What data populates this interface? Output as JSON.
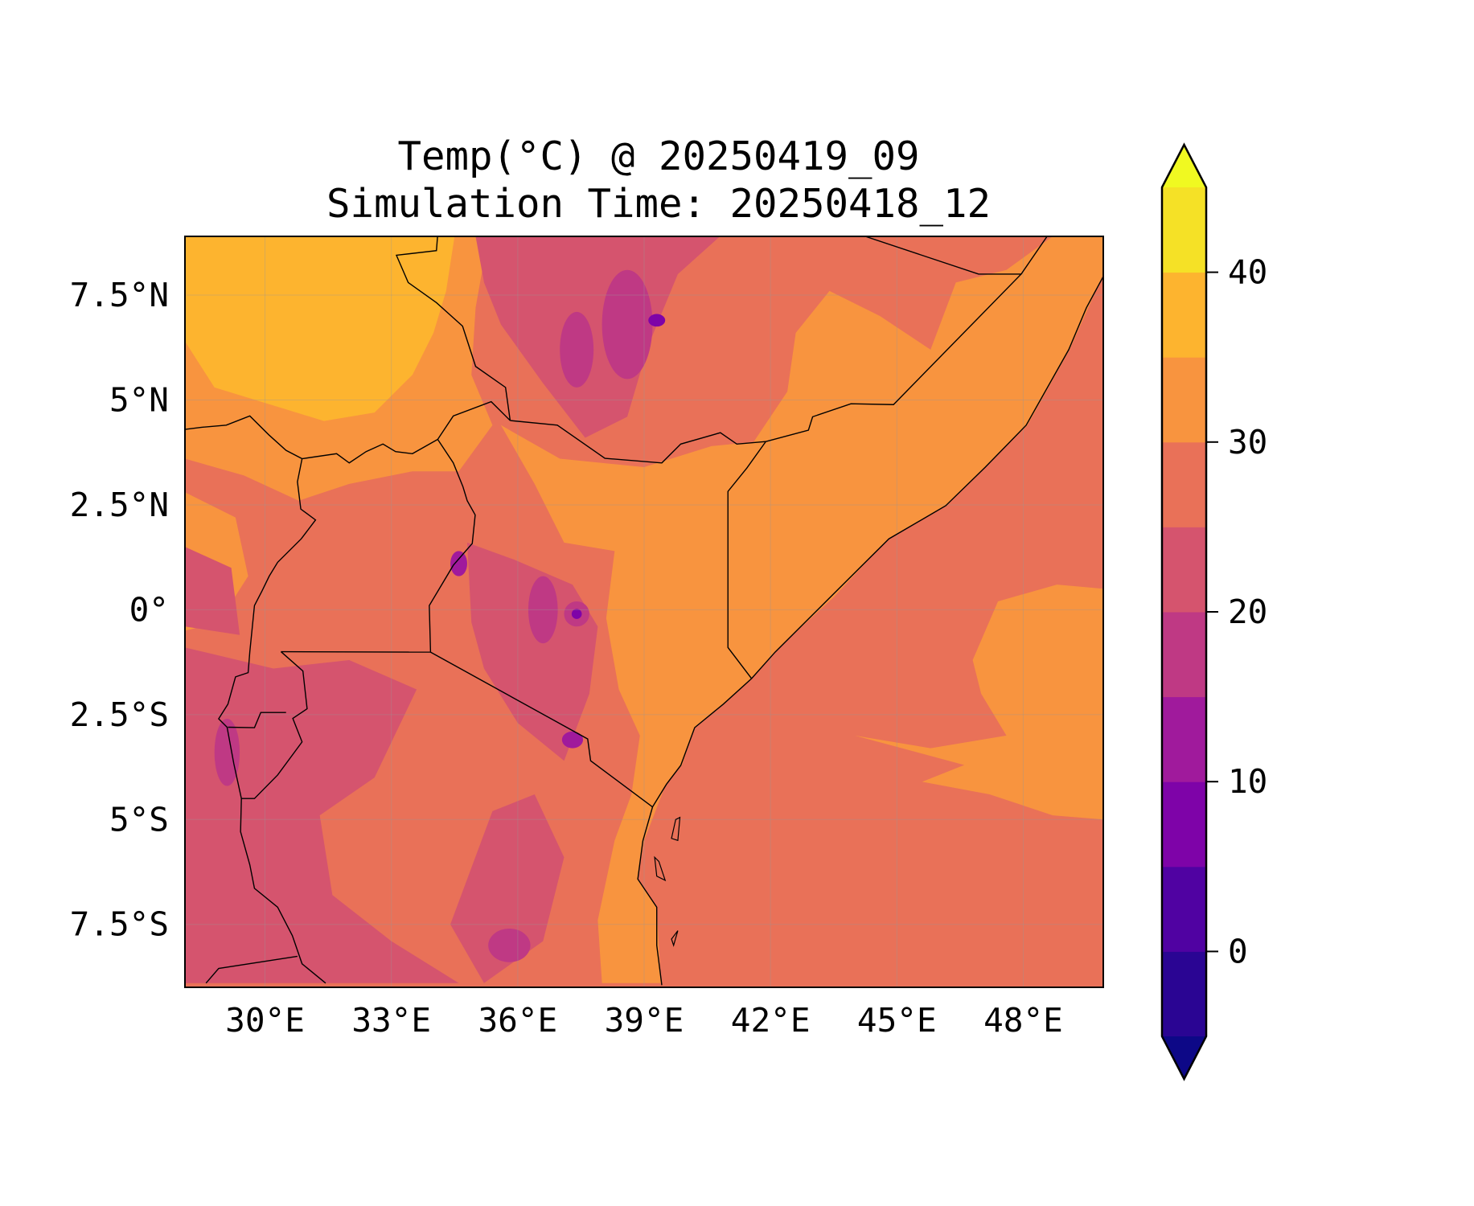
{
  "chart_data": {
    "type": "heatmap",
    "subtype": "filled-contour map",
    "title": "Temp(°C) @ 20250419_09",
    "subtitle": "Simulation Time: 20250418_12",
    "variable": "Temperature",
    "units": "°C",
    "lon_range": [
      28.1,
      49.9
    ],
    "lat_range": [
      -9.0,
      8.9
    ],
    "xticks": [
      {
        "value": 30,
        "label": "30°E"
      },
      {
        "value": 33,
        "label": "33°E"
      },
      {
        "value": 36,
        "label": "36°E"
      },
      {
        "value": 39,
        "label": "39°E"
      },
      {
        "value": 42,
        "label": "42°E"
      },
      {
        "value": 45,
        "label": "45°E"
      },
      {
        "value": 48,
        "label": "48°E"
      }
    ],
    "yticks": [
      {
        "value": 7.5,
        "label": "7.5°N"
      },
      {
        "value": 5,
        "label": "5°N"
      },
      {
        "value": 2.5,
        "label": "2.5°N"
      },
      {
        "value": 0,
        "label": "0°"
      },
      {
        "value": -2.5,
        "label": "2.5°S"
      },
      {
        "value": -5,
        "label": "5°S"
      },
      {
        "value": -7.5,
        "label": "7.5°S"
      }
    ],
    "grid": true,
    "colorbar": {
      "range": [
        -5,
        45
      ],
      "extend": "both",
      "levels": [
        -5,
        0,
        5,
        10,
        15,
        20,
        25,
        30,
        35,
        40,
        45
      ],
      "colors": [
        "#2a0593",
        "#5002a2",
        "#7e03a8",
        "#a01a9c",
        "#bf3984",
        "#d5546e",
        "#e97158",
        "#f8943f",
        "#fdb42f",
        "#f5e126"
      ],
      "under_color": "#0d0887",
      "over_color": "#f0f921",
      "ticks": [
        {
          "value": 0,
          "label": "0"
        },
        {
          "value": 10,
          "label": "10"
        },
        {
          "value": 20,
          "label": "20"
        },
        {
          "value": 30,
          "label": "30"
        },
        {
          "value": 40,
          "label": "40"
        }
      ],
      "placement": "right"
    },
    "dominant_ranges": {
      "ocean": "25-30",
      "south_sudan_lowlands": "35-40",
      "eastern_kenya_somalia": "30-35",
      "ethiopian_kenyan_highlands": "15-25"
    }
  }
}
